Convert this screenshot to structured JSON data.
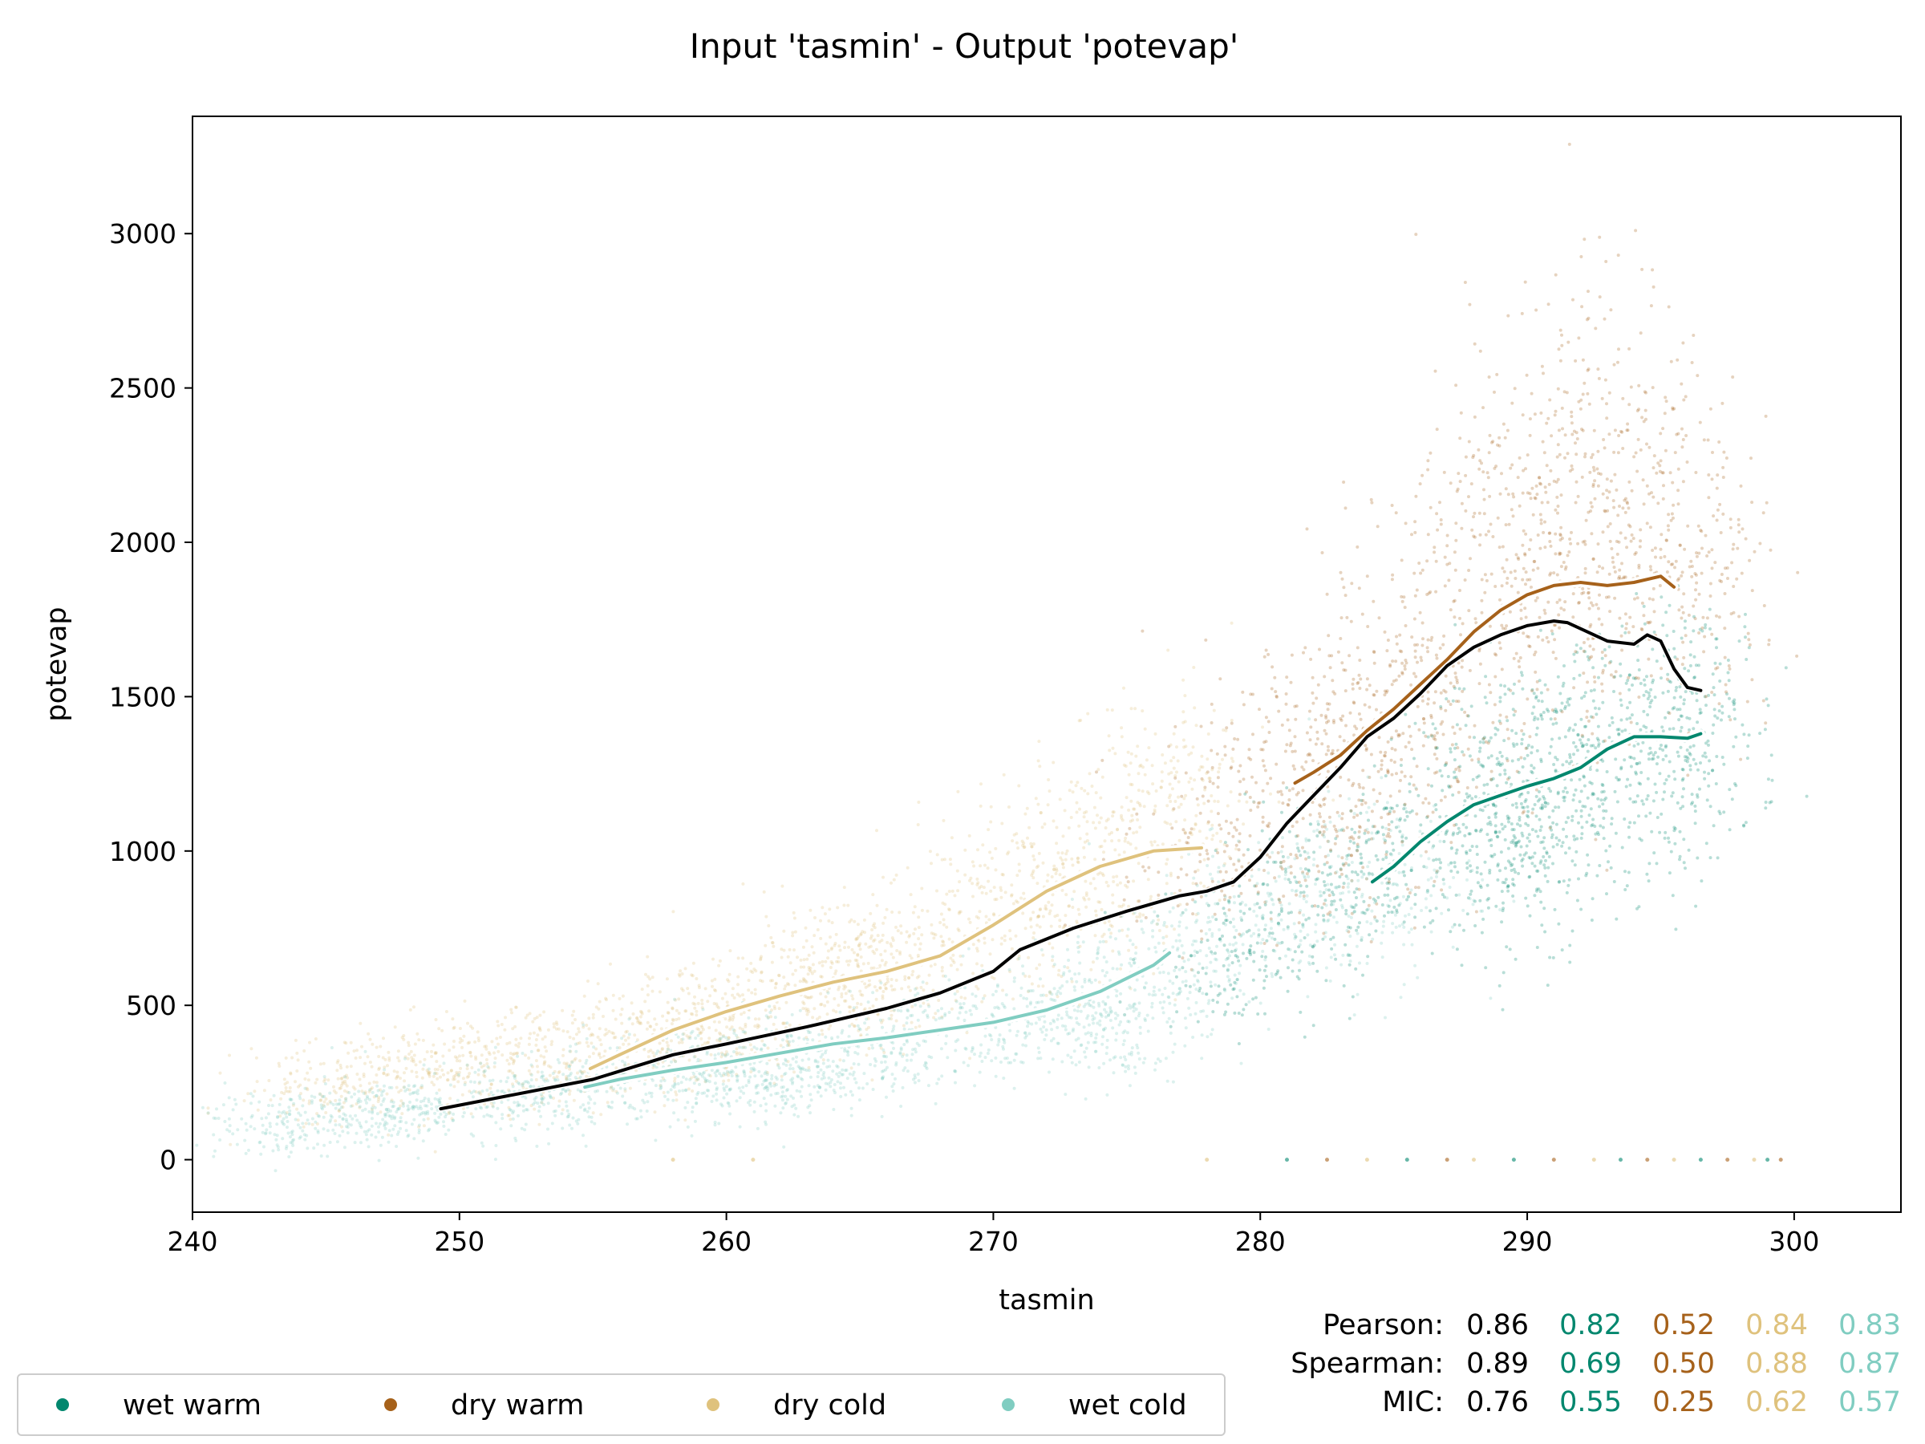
{
  "chart_data": {
    "type": "scatter",
    "title": "Input 'tasmin' - Output 'potevap'",
    "xlabel": "tasmin",
    "ylabel": "potevap",
    "xlim": [
      240,
      304
    ],
    "ylim": [
      -170,
      3380
    ],
    "x_ticks": [
      240,
      250,
      260,
      270,
      280,
      290,
      300
    ],
    "y_ticks": [
      0,
      500,
      1000,
      1500,
      2000,
      2500,
      3000
    ],
    "grid": false,
    "legend_placement": "bottom-left, below axes",
    "colors": {
      "overall": "#000000",
      "wet warm": "#01876e",
      "dry warm": "#a6611a",
      "dry cold": "#dfc27d",
      "wet cold": "#80cdc1"
    },
    "series": [
      {
        "name": "wet warm",
        "color": "#01876e",
        "trend_x": [
          284.2,
          285,
          286,
          287,
          288,
          289,
          290,
          291,
          292,
          293,
          294,
          295,
          296,
          296.5
        ],
        "trend_y": [
          900,
          950,
          1030,
          1095,
          1150,
          1180,
          1210,
          1235,
          1270,
          1330,
          1370,
          1370,
          1365,
          1380
        ],
        "scatter_cloud": [
          [
            282,
            850
          ],
          [
            285,
            1000
          ],
          [
            288,
            1150
          ],
          [
            290,
            1250
          ],
          [
            292,
            1300
          ],
          [
            294,
            1350
          ],
          [
            295.5,
            1350
          ],
          [
            296.3,
            1400
          ],
          [
            291,
            1050
          ],
          [
            289,
            950
          ],
          [
            279,
            650
          ]
        ]
      },
      {
        "name": "dry warm",
        "color": "#a6611a",
        "trend_x": [
          281.3,
          282,
          283,
          284,
          285,
          286,
          287,
          288,
          289,
          290,
          291,
          292,
          293,
          294,
          295,
          295.5
        ],
        "trend_y": [
          1220,
          1255,
          1310,
          1390,
          1460,
          1540,
          1620,
          1710,
          1780,
          1830,
          1860,
          1870,
          1860,
          1870,
          1890,
          1855
        ],
        "scatter_cloud": [
          [
            278,
            1000
          ],
          [
            281,
            1300
          ],
          [
            284,
            1550
          ],
          [
            287,
            1800
          ],
          [
            289,
            2000
          ],
          [
            291,
            2200
          ],
          [
            293,
            2300
          ],
          [
            295,
            2150
          ],
          [
            292,
            1700
          ],
          [
            296.5,
            1800
          ],
          [
            283,
            1100
          ],
          [
            286,
            1350
          ]
        ]
      },
      {
        "name": "dry cold",
        "color": "#dfc27d",
        "trend_x": [
          254.9,
          256,
          258,
          260,
          262,
          264,
          266,
          268,
          270,
          272,
          274,
          276,
          277.8
        ],
        "trend_y": [
          295,
          340,
          420,
          480,
          530,
          575,
          610,
          660,
          760,
          870,
          950,
          1000,
          1010
        ],
        "scatter_cloud": [
          [
            245,
            230
          ],
          [
            248,
            290
          ],
          [
            251,
            320
          ],
          [
            254,
            330
          ],
          [
            257,
            420
          ],
          [
            260,
            500
          ],
          [
            263,
            580
          ],
          [
            266,
            650
          ],
          [
            269,
            780
          ],
          [
            272,
            950
          ],
          [
            275,
            1100
          ],
          [
            277,
            1150
          ],
          [
            273,
            800
          ],
          [
            265,
            550
          ],
          [
            259,
            380
          ]
        ]
      },
      {
        "name": "wet cold",
        "color": "#80cdc1",
        "trend_x": [
          254.7,
          256,
          258,
          260,
          262,
          264,
          266,
          268,
          270,
          272,
          274,
          276,
          276.6
        ],
        "trend_y": [
          235,
          260,
          290,
          315,
          345,
          375,
          395,
          420,
          445,
          485,
          545,
          630,
          670
        ],
        "scatter_cloud": [
          [
            243,
            120
          ],
          [
            246,
            140
          ],
          [
            249,
            170
          ],
          [
            252,
            200
          ],
          [
            255,
            230
          ],
          [
            258,
            270
          ],
          [
            261,
            310
          ],
          [
            264,
            340
          ],
          [
            267,
            380
          ],
          [
            270,
            430
          ],
          [
            273,
            500
          ],
          [
            276,
            620
          ],
          [
            279,
            750
          ],
          [
            282,
            850
          ],
          [
            285,
            900
          ],
          [
            274,
            400
          ],
          [
            262,
            260
          ]
        ]
      },
      {
        "name": "overall",
        "color": "#000000",
        "trend_x": [
          249.3,
          252,
          255,
          258,
          260,
          263,
          266,
          268,
          270,
          271,
          273,
          275,
          276,
          277,
          278,
          279,
          280,
          281,
          282,
          283,
          284,
          285,
          286,
          287,
          288,
          289,
          290,
          291,
          291.5,
          292,
          293,
          294,
          294.5,
          295,
          295.5,
          296,
          296.5
        ],
        "trend_y": [
          165,
          210,
          260,
          340,
          375,
          430,
          490,
          540,
          610,
          680,
          750,
          805,
          830,
          855,
          870,
          900,
          980,
          1090,
          1180,
          1270,
          1370,
          1430,
          1510,
          1600,
          1660,
          1700,
          1730,
          1745,
          1740,
          1720,
          1680,
          1670,
          1700,
          1680,
          1590,
          1530,
          1520
        ]
      }
    ],
    "zero_points_x": [
      258,
      261,
      278,
      281,
      282.5,
      284,
      285.5,
      287,
      288,
      289.5,
      291,
      292.5,
      293.5,
      294.5,
      295.5,
      296.5,
      297.5,
      298.5,
      299,
      299.5
    ],
    "stats": {
      "rows": [
        {
          "label": "Pearson:",
          "values": [
            "0.86",
            "0.82",
            "0.52",
            "0.84",
            "0.83"
          ]
        },
        {
          "label": "Spearman:",
          "values": [
            "0.89",
            "0.69",
            "0.50",
            "0.88",
            "0.87"
          ]
        },
        {
          "label": "MIC:",
          "values": [
            "0.76",
            "0.55",
            "0.25",
            "0.62",
            "0.57"
          ]
        }
      ],
      "value_colors": [
        "#000000",
        "#01876e",
        "#a6611a",
        "#dfc27d",
        "#80cdc1"
      ]
    },
    "legend": [
      {
        "label": "wet warm",
        "color": "#01876e"
      },
      {
        "label": "dry warm",
        "color": "#a6611a"
      },
      {
        "label": "dry cold",
        "color": "#dfc27d"
      },
      {
        "label": "wet cold",
        "color": "#80cdc1"
      }
    ]
  }
}
